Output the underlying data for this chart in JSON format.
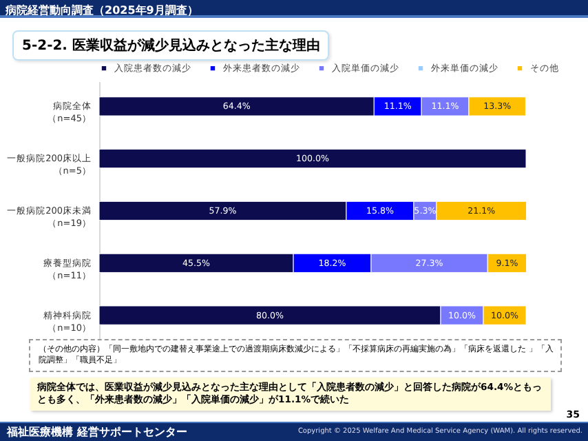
{
  "chart_data": {
    "type": "bar",
    "orientation": "horizontal",
    "stacked": true,
    "title": "5-2-2. 医業収益が減少見込みとなった主な理由",
    "categories": [
      "病院全体（n=45）",
      "一般病院200床以上（n=5）",
      "一般病院200床未満（n=19）",
      "療養型病院（n=11）",
      "精神科病院（n=10）"
    ],
    "series": [
      {
        "name": "入院患者数の減少",
        "color": "#0c0c4e",
        "values": [
          64.4,
          100.0,
          57.9,
          45.5,
          80.0
        ],
        "value_labels": [
          "64.4%",
          "100.0%",
          "57.9%",
          "45.5%",
          "80.0%"
        ]
      },
      {
        "name": "外来患者数の減少",
        "color": "#0000ff",
        "values": [
          11.1,
          null,
          15.8,
          18.2,
          null
        ],
        "value_labels": [
          "11.1%",
          null,
          "15.8%",
          "18.2%",
          null
        ]
      },
      {
        "name": "入院単価の減少",
        "color": "#7878ff",
        "values": [
          11.1,
          null,
          5.3,
          27.3,
          10.0
        ],
        "value_labels": [
          "11.1%",
          null,
          "5.3%",
          "27.3%",
          "10.0%"
        ]
      },
      {
        "name": "外来単価の減少",
        "color": "#99ccff",
        "values": [
          null,
          null,
          null,
          null,
          null
        ],
        "value_labels": [
          null,
          null,
          null,
          null,
          null
        ]
      },
      {
        "name": "その他",
        "color": "#ffc000",
        "values": [
          13.3,
          null,
          21.1,
          9.1,
          10.0
        ],
        "value_labels": [
          "13.3%",
          null,
          "21.1%",
          "9.1%",
          "10.0%"
        ]
      }
    ],
    "xlim": [
      0,
      100
    ],
    "tick_labels": "y",
    "legend": "top",
    "annotations": [
      "病院経営動向調査（2025年9月調査）",
      "（その他の内容）「同一敷地内での建替え事業途上での過渡期病床数減少による」「不採算病床の再編実施の為」「病床を返還した 」「入院調整」「職員不足」",
      "病院全体では、医業収益が減少見込みとなった主な理由として「入院患者数の減少」と回答した病院が64.4%ともっとも多く、「外来患者数の減少」「入院単価の減少」が11.1%で続いた",
      "35",
      "福祉医療機構 経営サポートセンター",
      "Copyright © 2025 Welfare And Medical Service Agency (WAM). All rights reserved."
    ]
  }
}
